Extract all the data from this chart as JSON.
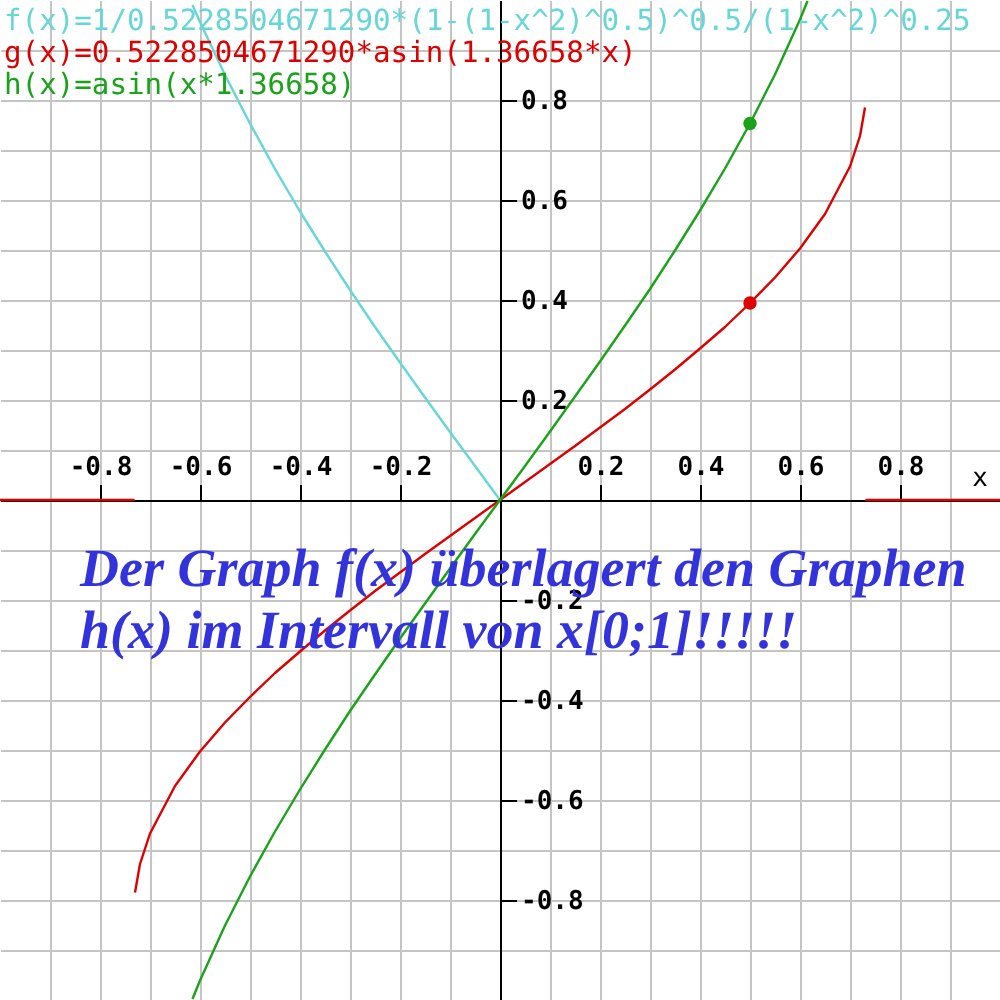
{
  "chart_data": {
    "type": "line",
    "xlabel": "x",
    "xlim": [
      -1,
      1
    ],
    "ylim": [
      -1,
      1
    ],
    "xticks": [
      {
        "value": -0.9,
        "label": null
      },
      -0.8,
      {
        "value": -0.7,
        "label": null
      },
      -0.6,
      {
        "value": -0.5,
        "label": null
      },
      -0.4,
      {
        "value": -0.3,
        "label": null
      },
      -0.2,
      {
        "value": -0.1,
        "label": null
      },
      {
        "value": 0.1,
        "label": null
      },
      0.2,
      {
        "value": 0.3,
        "label": null
      },
      0.4,
      {
        "value": 0.5,
        "label": null
      },
      0.6,
      {
        "value": 0.7,
        "label": null
      },
      0.8,
      {
        "value": 0.9,
        "label": null
      }
    ],
    "yticks": [
      {
        "value": -0.9,
        "label": null
      },
      -0.8,
      {
        "value": -0.7,
        "label": null
      },
      -0.6,
      {
        "value": -0.5,
        "label": null
      },
      -0.4,
      {
        "value": -0.3,
        "label": null
      },
      -0.2,
      {
        "value": -0.1,
        "label": null
      },
      {
        "value": 0.1,
        "label": null
      },
      0.2,
      {
        "value": 0.3,
        "label": null
      },
      0.4,
      {
        "value": 0.5,
        "label": null
      },
      0.6,
      {
        "value": 0.7,
        "label": null
      },
      0.8,
      {
        "value": 0.9,
        "label": null
      }
    ],
    "grid": true,
    "legend": "top left",
    "line_style": "solid",
    "marker": "none",
    "series": [
      {
        "name": "f(x)=1/0.5228504671290*(1-(1-x^2)^0.5)^0.5/(1-x^2)^0.25",
        "color": "#66d6d6",
        "x": [
          -0.615,
          -0.6,
          -0.55,
          -0.5,
          -0.45,
          -0.4,
          -0.35,
          -0.3,
          -0.25,
          -0.2,
          -0.15,
          -0.1,
          -0.05,
          0
        ],
        "values": [
          0.99,
          0.956,
          0.85,
          0.753,
          0.662,
          0.577,
          0.497,
          0.42,
          0.346,
          0.275,
          0.205,
          0.136,
          0.068,
          0
        ]
      },
      {
        "name": "g(x)=0.5228504671290*asin(1.36658*x)",
        "color": "#dd0000",
        "x": [
          -1,
          -0.731,
          -0.7305,
          -0.73,
          -0.72,
          -0.7,
          -0.65,
          -0.6,
          -0.55,
          -0.5,
          -0.45,
          -0.4,
          -0.35,
          -0.3,
          -0.25,
          -0.2,
          -0.15,
          -0.1,
          -0.05,
          0,
          0.05,
          0.1,
          0.15,
          0.2,
          0.25,
          0.3,
          0.35,
          0.4,
          0.45,
          0.5,
          0.55,
          0.6,
          0.65,
          0.7,
          0.72,
          0.73,
          0.7305,
          0.731,
          1
        ],
        "values": [
          0,
          0,
          null,
          -0.785,
          -0.728,
          -0.667,
          -0.572,
          -0.503,
          -0.445,
          -0.394,
          -0.346,
          -0.303,
          -0.261,
          -0.221,
          -0.182,
          -0.145,
          -0.108,
          -0.072,
          -0.036,
          0,
          0.036,
          0.072,
          0.108,
          0.145,
          0.182,
          0.221,
          0.261,
          0.303,
          0.346,
          0.394,
          0.445,
          0.503,
          0.572,
          0.667,
          0.728,
          0.785,
          null,
          0,
          0
        ]
      },
      {
        "name": "h(x)=asin(x*1.36658)",
        "color": "#1aa31a",
        "x": [
          -0.615,
          -0.6,
          -0.55,
          -0.5,
          -0.45,
          -0.4,
          -0.35,
          -0.3,
          -0.25,
          -0.2,
          -0.15,
          -0.1,
          -0.05,
          0,
          0.05,
          0.1,
          0.15,
          0.2,
          0.25,
          0.3,
          0.35,
          0.4,
          0.45,
          0.5,
          0.55,
          0.6,
          0.615
        ],
        "values": [
          -0.998,
          -0.961,
          -0.851,
          -0.753,
          -0.663,
          -0.579,
          -0.499,
          -0.422,
          -0.349,
          -0.277,
          -0.207,
          -0.137,
          -0.068,
          0,
          0.068,
          0.137,
          0.207,
          0.277,
          0.349,
          0.422,
          0.499,
          0.579,
          0.663,
          0.753,
          0.851,
          0.961,
          0.998
        ]
      },
      {
        "color": "#dd0000",
        "type": "scatter",
        "marker": "circle",
        "x": [
          0.5
        ],
        "values": [
          0.394
        ]
      },
      {
        "color": "#1aa31a",
        "type": "scatter",
        "marker": "circle",
        "x": [
          0.5
        ],
        "values": [
          0.753
        ]
      }
    ],
    "annotations": [
      "Der Graph f(x) überlagert den Graphen",
      "h(x) im Intervall von x[0;1]!!!!!"
    ]
  }
}
